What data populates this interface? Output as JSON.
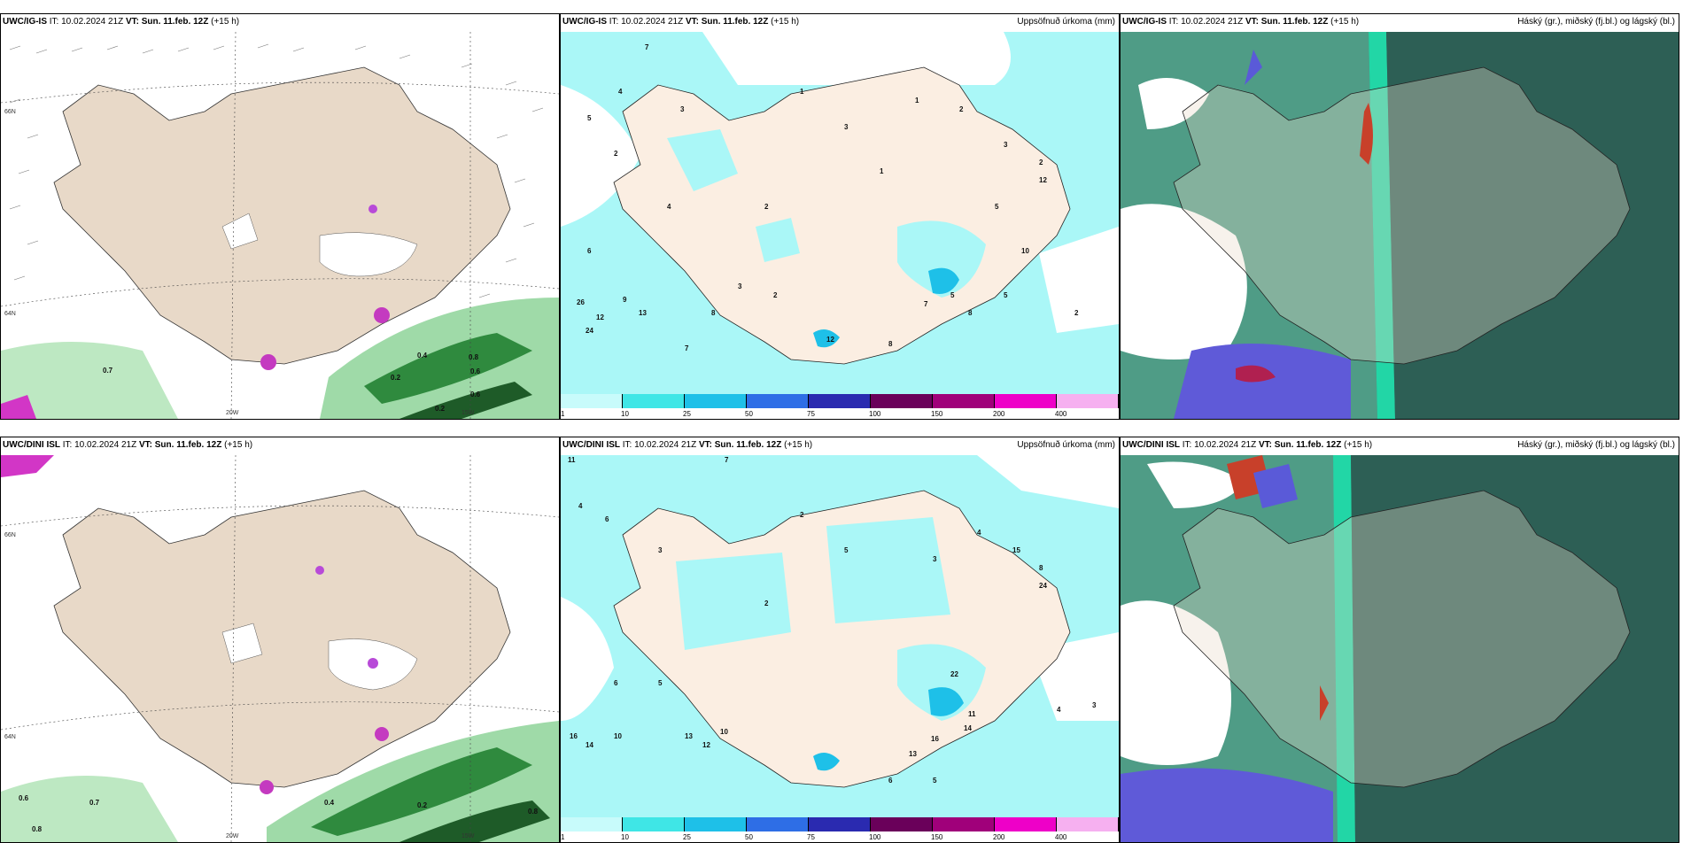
{
  "rows": [
    {
      "model": "UWC/IG-IS",
      "it": "IT: 10.02.2024 21Z",
      "vt_label": "VT:",
      "vt": "Sun. 11.feb. 12Z",
      "lead": "(+15 h)",
      "precip_values": [
        "7",
        "4",
        "5",
        "3",
        "2",
        "1",
        "3",
        "1",
        "2",
        "3",
        "2",
        "1",
        "5",
        "10",
        "5",
        "12",
        "8",
        "2",
        "6",
        "4",
        "12",
        "8",
        "9",
        "13",
        "24",
        "26",
        "7",
        "3",
        "2",
        "12",
        "8",
        "7",
        "5",
        "2"
      ],
      "wind_values": [
        "0.7",
        "0.2",
        "0.6",
        "0.8",
        "0.6",
        "0.2",
        "0.4"
      ]
    },
    {
      "model": "UWC/DINI ISL",
      "it": "IT: 10.02.2024 21Z",
      "vt_label": "VT:",
      "vt": "Sun. 11.feb. 12Z",
      "lead": "(+15 h)",
      "precip_values": [
        "11",
        "7",
        "4",
        "6",
        "3",
        "2",
        "5",
        "15",
        "8",
        "24",
        "2",
        "3",
        "4",
        "13",
        "16",
        "14",
        "10",
        "11",
        "13",
        "22",
        "6",
        "5",
        "4",
        "3",
        "16",
        "14",
        "10",
        "12",
        "6",
        "5"
      ],
      "wind_values": [
        "0.6",
        "0.7",
        "0.8",
        "0.4",
        "0.2",
        "0.8"
      ]
    }
  ],
  "precip_title": "Uppsöfnuð úrkoma (mm)",
  "cloud_title": "Háský (gr.), miðský (fj.bl.) og lágský (bl.)",
  "grid_labels": {
    "lat1": "66N",
    "lat2": "64N",
    "lon1": "20W",
    "lon2": "15W"
  },
  "colorbar": {
    "ticks": [
      "1",
      "10",
      "25",
      "50",
      "75",
      "100",
      "150",
      "200",
      "400"
    ],
    "colors": [
      "#c8fbfb",
      "#3fe6e6",
      "#1ec0e8",
      "#2e6ee6",
      "#2a2ab0",
      "#6a005a",
      "#a0007a",
      "#ee00c8",
      "#f6b0f0"
    ]
  },
  "colors": {
    "land": "#e8d9c8",
    "precip_land": "#fbeee2",
    "precip_light": "#aaf7f7",
    "wind_green": "#7fcc8a",
    "wind_dark": "#1e6b2a",
    "cloud_high": "#2b6a5a",
    "cloud_mid": "#49a08c",
    "cloud_low": "#6a5adf"
  }
}
